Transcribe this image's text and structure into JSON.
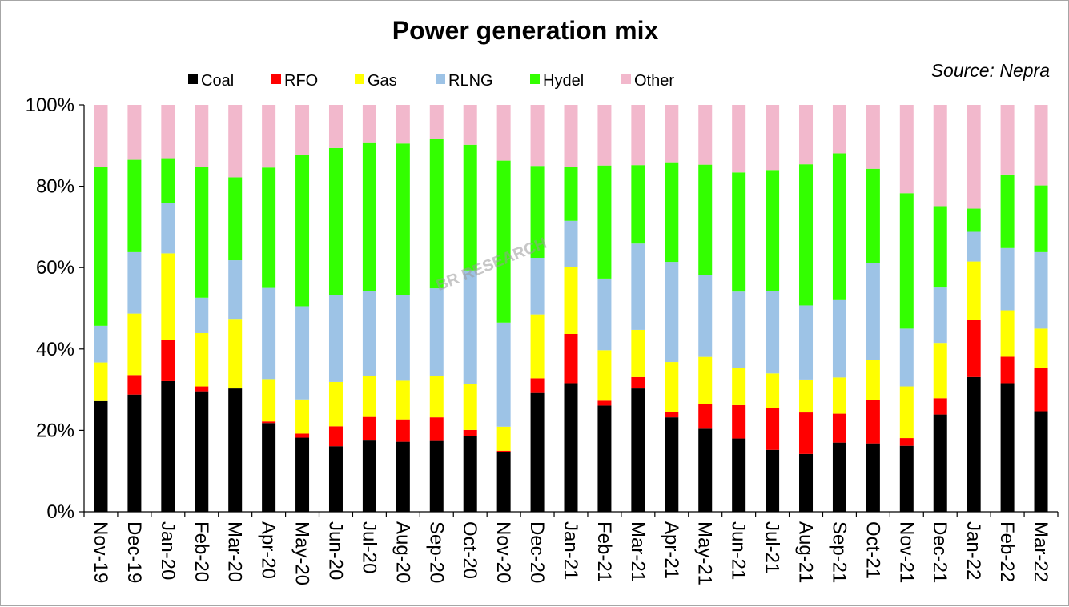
{
  "chart_data": {
    "type": "bar",
    "stacked": true,
    "percent": true,
    "title": "Power generation mix",
    "source": "Source: Nepra",
    "watermark": "BR RESEARCH",
    "ylim": [
      0,
      100
    ],
    "yticks": [
      "0%",
      "20%",
      "40%",
      "60%",
      "80%",
      "100%"
    ],
    "legend_position": "top",
    "grid": false,
    "categories": [
      "Nov-19",
      "Dec-19",
      "Jan-20",
      "Feb-20",
      "Mar-20",
      "Apr-20",
      "May-20",
      "Jun-20",
      "Jul-20",
      "Aug-20",
      "Sep-20",
      "Oct-20",
      "Nov-20",
      "Dec-20",
      "Jan-21",
      "Feb-21",
      "Mar-21",
      "Apr-21",
      "May-21",
      "Jun-21",
      "Jul-21",
      "Aug-21",
      "Sep-21",
      "Oct-21",
      "Nov-21",
      "Dec-21",
      "Jan-22",
      "Feb-22",
      "Mar-22"
    ],
    "series": [
      {
        "name": "Coal",
        "color": "#000000",
        "values": [
          27.2,
          28.8,
          32.1,
          29.6,
          30.3,
          21.8,
          18.2,
          16.1,
          17.5,
          17.2,
          17.4,
          18.7,
          14.6,
          29.2,
          31.6,
          26.1,
          30.3,
          23.2,
          20.0,
          18.0,
          15.2,
          14.2,
          17.0,
          16.8,
          16.2,
          23.9,
          33.1,
          31.6,
          24.7
        ]
      },
      {
        "name": "RFO",
        "color": "#ff0000",
        "values": [
          0.0,
          4.8,
          10.1,
          1.2,
          0.0,
          0.4,
          1.0,
          4.9,
          5.8,
          5.5,
          5.8,
          1.4,
          0.4,
          3.6,
          12.1,
          1.2,
          2.8,
          1.4,
          5.9,
          8.2,
          10.2,
          10.2,
          7.1,
          10.7,
          1.9,
          4.0,
          14.0,
          6.5,
          10.6
        ]
      },
      {
        "name": "Gas",
        "color": "#ffff00",
        "values": [
          9.5,
          15.1,
          21.3,
          13.1,
          17.1,
          10.4,
          8.4,
          10.9,
          10.1,
          9.5,
          10.1,
          11.3,
          5.9,
          15.7,
          16.5,
          12.4,
          11.6,
          12.2,
          11.4,
          9.1,
          8.6,
          8.1,
          8.9,
          9.8,
          12.7,
          13.6,
          14.4,
          11.4,
          9.7
        ]
      },
      {
        "name": "RLNG",
        "color": "#9dc3e6",
        "values": [
          9.0,
          15.1,
          12.4,
          8.7,
          14.4,
          22.4,
          22.9,
          21.3,
          20.8,
          21.1,
          21.6,
          27.9,
          25.6,
          13.9,
          11.3,
          17.6,
          21.2,
          24.6,
          19.7,
          18.8,
          20.2,
          18.2,
          19.0,
          23.8,
          14.2,
          13.6,
          7.3,
          15.3,
          18.8
        ]
      },
      {
        "name": "Hydel",
        "color": "#33ff00",
        "values": [
          39.1,
          22.7,
          11.0,
          32.1,
          20.4,
          29.6,
          37.1,
          36.2,
          36.6,
          37.2,
          36.8,
          30.9,
          39.8,
          22.6,
          13.3,
          27.8,
          19.3,
          24.5,
          26.6,
          29.3,
          29.8,
          34.7,
          36.1,
          23.2,
          33.3,
          20.0,
          5.7,
          18.1,
          16.4
        ]
      },
      {
        "name": "Other",
        "color": "#f2b8cc",
        "values": [
          15.2,
          13.5,
          13.1,
          15.3,
          17.8,
          15.4,
          12.4,
          10.6,
          9.2,
          9.5,
          8.3,
          9.8,
          13.7,
          15.0,
          15.2,
          14.9,
          14.8,
          14.1,
          14.4,
          16.6,
          16.0,
          14.6,
          11.9,
          15.7,
          21.7,
          24.9,
          25.5,
          17.1,
          19.8
        ]
      }
    ]
  }
}
